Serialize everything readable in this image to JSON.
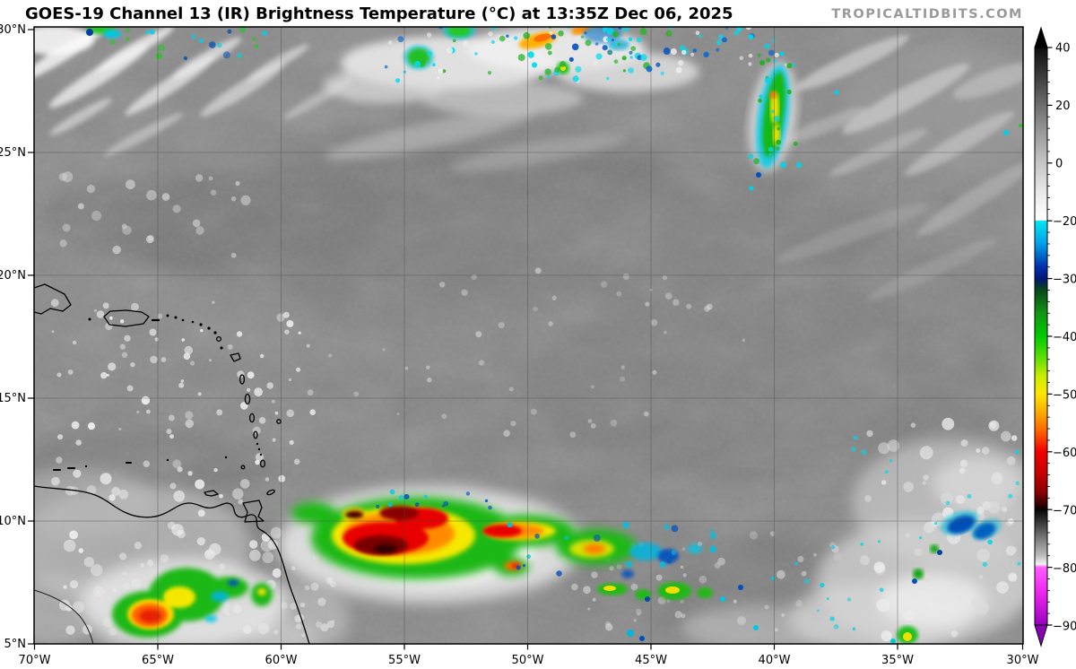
{
  "header": {
    "title": "GOES-19 Channel 13 (IR) Brightness Temperature (°C) at 13:35Z Dec 06, 2025",
    "watermark": "TROPICALTIDBITS.COM"
  },
  "map": {
    "lat_labels": [
      "30°N",
      "25°N",
      "20°N",
      "15°N",
      "10°N",
      "5°N"
    ],
    "lon_labels": [
      "70°W",
      "65°W",
      "60°W",
      "55°W",
      "50°W",
      "45°W",
      "40°W",
      "35°W",
      "30°W"
    ]
  },
  "colorbar": {
    "tick_labels": [
      "40",
      "20",
      "0",
      "−20",
      "−30",
      "−40",
      "−50",
      "−60",
      "−70",
      "−80",
      "−90"
    ],
    "tick_values": [
      40,
      20,
      0,
      -20,
      -30,
      -40,
      -50,
      -60,
      -70,
      -80,
      -90
    ],
    "arrow_top_color": "#000000",
    "arrow_bottom_color": "#8a00b4",
    "stops": [
      {
        "t": 40,
        "color": "#0e0e0e"
      },
      {
        "t": 30,
        "color": "#3c3c3c"
      },
      {
        "t": 20,
        "color": "#6e6e6e"
      },
      {
        "t": 10,
        "color": "#9c9c9c"
      },
      {
        "t": 0,
        "color": "#c6c6c6"
      },
      {
        "t": -10,
        "color": "#e8e8e8"
      },
      {
        "t": -19,
        "color": "#ffffff"
      },
      {
        "t": -19.9,
        "color": "#ffffff"
      },
      {
        "t": -20,
        "color": "#00e8f4"
      },
      {
        "t": -24,
        "color": "#00a0e8"
      },
      {
        "t": -28,
        "color": "#0030b0"
      },
      {
        "t": -30,
        "color": "#001878"
      },
      {
        "t": -32,
        "color": "#084818"
      },
      {
        "t": -36,
        "color": "#129614"
      },
      {
        "t": -40,
        "color": "#00cc00"
      },
      {
        "t": -44,
        "color": "#66e000"
      },
      {
        "t": -47,
        "color": "#ccee00"
      },
      {
        "t": -50,
        "color": "#ffe600"
      },
      {
        "t": -53,
        "color": "#ffae00"
      },
      {
        "t": -56,
        "color": "#ff6e00"
      },
      {
        "t": -60,
        "color": "#f20000"
      },
      {
        "t": -64,
        "color": "#c40000"
      },
      {
        "t": -67,
        "color": "#8a0000"
      },
      {
        "t": -69,
        "color": "#3a0000"
      },
      {
        "t": -70,
        "color": "#050505"
      },
      {
        "t": -72,
        "color": "#333333"
      },
      {
        "t": -75,
        "color": "#7a7a7a"
      },
      {
        "t": -78,
        "color": "#bdbdbd"
      },
      {
        "t": -79.5,
        "color": "#f2f2f2"
      },
      {
        "t": -80,
        "color": "#ff5cff"
      },
      {
        "t": -84,
        "color": "#f228f2"
      },
      {
        "t": -87,
        "color": "#c814dc"
      },
      {
        "t": -90,
        "color": "#9600be"
      }
    ]
  }
}
